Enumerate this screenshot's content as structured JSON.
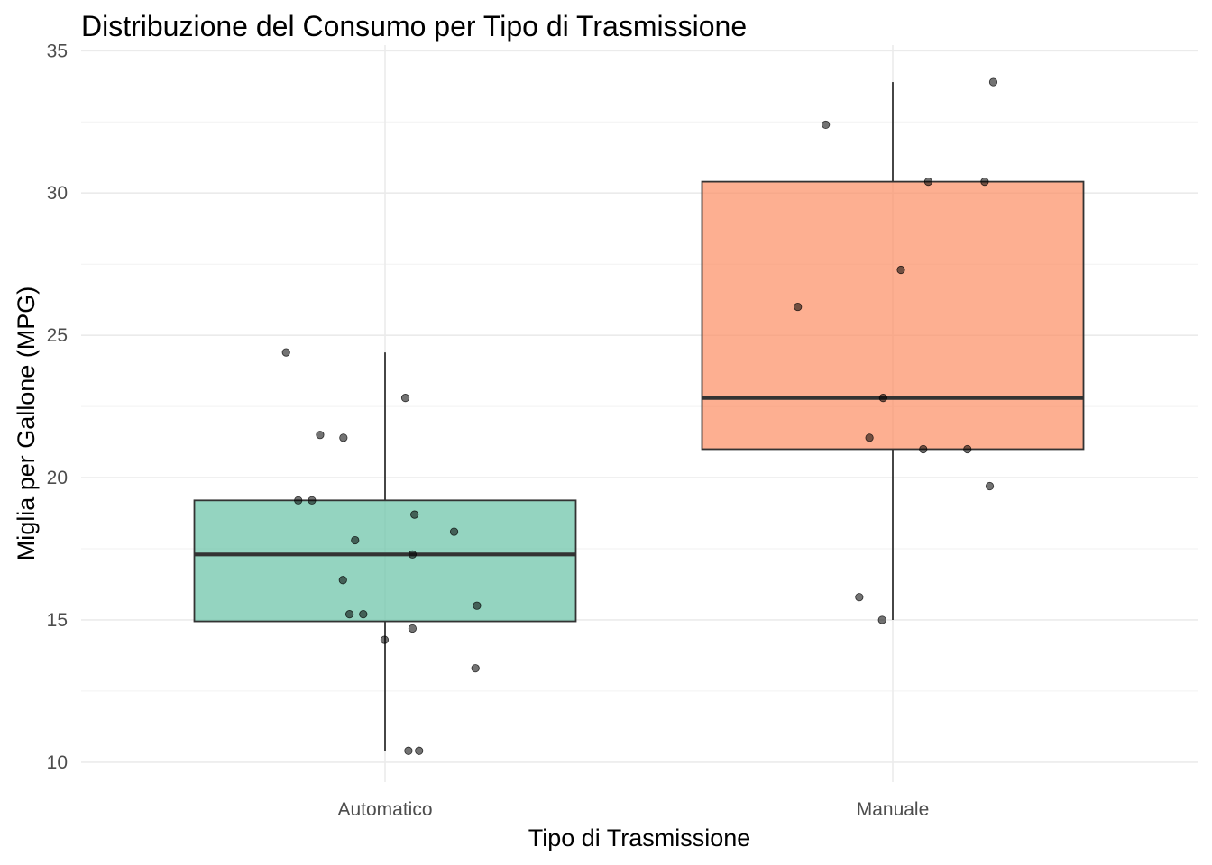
{
  "chart_data": {
    "type": "boxplot",
    "title": "Distribuzione del Consumo per Tipo di Trasmissione",
    "xlabel": "Tipo di Trasmissione",
    "ylabel": "Miglia per Gallone (MPG)",
    "ylim": [
      9.3,
      35.2
    ],
    "yticks": [
      10,
      15,
      20,
      25,
      30,
      35
    ],
    "grid": true,
    "legend": "none",
    "categories": [
      "Automatico",
      "Manuale"
    ],
    "series": [
      {
        "category": "Automatico",
        "color": "#66c2a5",
        "whisker_low": 10.4,
        "q1": 14.95,
        "median": 17.3,
        "q3": 19.2,
        "whisker_high": 24.4,
        "points": [
          {
            "dx": -0.195,
            "y": 24.4
          },
          {
            "dx": 0.04,
            "y": 22.8
          },
          {
            "dx": -0.128,
            "y": 21.5
          },
          {
            "dx": -0.082,
            "y": 21.4
          },
          {
            "dx": -0.171,
            "y": 19.2
          },
          {
            "dx": -0.144,
            "y": 19.2
          },
          {
            "dx": 0.058,
            "y": 18.7
          },
          {
            "dx": 0.136,
            "y": 18.1
          },
          {
            "dx": -0.059,
            "y": 17.8
          },
          {
            "dx": 0.054,
            "y": 17.3
          },
          {
            "dx": -0.083,
            "y": 16.4
          },
          {
            "dx": 0.181,
            "y": 15.5
          },
          {
            "dx": -0.07,
            "y": 15.2
          },
          {
            "dx": -0.043,
            "y": 15.2
          },
          {
            "dx": 0.054,
            "y": 14.7
          },
          {
            "dx": -0.001,
            "y": 14.3
          },
          {
            "dx": 0.178,
            "y": 13.3
          },
          {
            "dx": 0.046,
            "y": 10.4
          },
          {
            "dx": 0.067,
            "y": 10.4
          }
        ]
      },
      {
        "category": "Manuale",
        "color": "#fc8d62",
        "whisker_low": 15.0,
        "q1": 21.0,
        "median": 22.8,
        "q3": 30.4,
        "whisker_high": 33.9,
        "points": [
          {
            "dx": 0.198,
            "y": 33.9
          },
          {
            "dx": -0.132,
            "y": 32.4
          },
          {
            "dx": 0.07,
            "y": 30.4
          },
          {
            "dx": 0.181,
            "y": 30.4
          },
          {
            "dx": 0.016,
            "y": 27.3
          },
          {
            "dx": -0.187,
            "y": 26.0
          },
          {
            "dx": -0.019,
            "y": 22.8
          },
          {
            "dx": -0.046,
            "y": 21.4
          },
          {
            "dx": 0.147,
            "y": 21.0
          },
          {
            "dx": 0.06,
            "y": 21.0
          },
          {
            "dx": 0.191,
            "y": 19.7
          },
          {
            "dx": -0.066,
            "y": 15.8
          },
          {
            "dx": -0.021,
            "y": 15.0
          }
        ]
      }
    ]
  }
}
